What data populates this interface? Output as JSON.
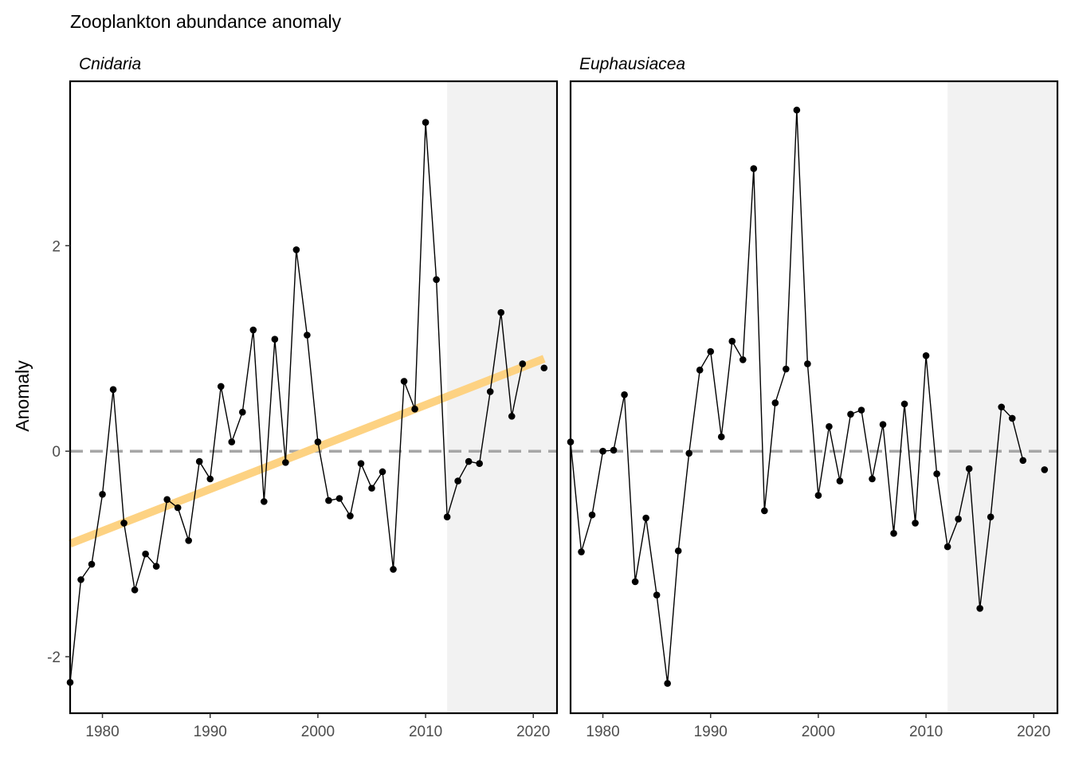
{
  "title": "Zooplankton abundance anomaly",
  "y_axis_label": "Anomaly",
  "colors": {
    "line": "#000000",
    "point": "#000000",
    "trend": "#FDD282",
    "zero_line": "#A6A6A6",
    "recent_shade": "#F2F2F2",
    "panel_border": "#000000"
  },
  "chart_data": [
    {
      "type": "line",
      "panel_title": "Cnidaria",
      "xlim": [
        1977,
        2022.2
      ],
      "ylim": [
        -2.55,
        3.6
      ],
      "x_ticks": [
        1980,
        1990,
        2000,
        2010,
        2020
      ],
      "y_ticks": [
        -2,
        0,
        2
      ],
      "shaded_period": [
        2012,
        2022.2
      ],
      "reference_line_y": 0,
      "trend_line": {
        "x": [
          1977,
          2021
        ],
        "y": [
          -0.9,
          0.9
        ]
      },
      "x": [
        1977,
        1978,
        1979,
        1980,
        1981,
        1982,
        1983,
        1984,
        1985,
        1986,
        1987,
        1988,
        1989,
        1990,
        1991,
        1992,
        1993,
        1994,
        1995,
        1996,
        1997,
        1998,
        1999,
        2000,
        2001,
        2002,
        2003,
        2004,
        2005,
        2006,
        2007,
        2008,
        2009,
        2010,
        2011,
        2012,
        2013,
        2014,
        2015,
        2016,
        2017,
        2018,
        2019,
        2021
      ],
      "y": [
        -2.25,
        -1.25,
        -1.1,
        -0.42,
        0.6,
        -0.7,
        -1.35,
        -1.0,
        -1.12,
        -0.47,
        -0.55,
        -0.87,
        -0.1,
        -0.27,
        0.63,
        0.09,
        0.38,
        1.18,
        -0.49,
        1.09,
        -0.11,
        1.96,
        1.13,
        0.09,
        -0.48,
        -0.46,
        -0.63,
        -0.12,
        -0.36,
        -0.2,
        -1.15,
        0.68,
        0.41,
        3.2,
        1.67,
        -0.64,
        -0.29,
        -0.1,
        -0.12,
        0.58,
        1.35,
        0.34,
        0.85,
        0.81
      ]
    },
    {
      "type": "line",
      "panel_title": "Euphausiacea",
      "xlim": [
        1977,
        2022.2
      ],
      "ylim": [
        -2.55,
        3.6
      ],
      "x_ticks": [
        1980,
        1990,
        2000,
        2010,
        2020
      ],
      "y_ticks": [
        -2,
        0,
        2
      ],
      "shaded_period": [
        2012,
        2022.2
      ],
      "reference_line_y": 0,
      "x": [
        1977,
        1978,
        1979,
        1980,
        1981,
        1982,
        1983,
        1984,
        1985,
        1986,
        1987,
        1988,
        1989,
        1990,
        1991,
        1992,
        1993,
        1994,
        1995,
        1996,
        1997,
        1998,
        1999,
        2000,
        2001,
        2002,
        2003,
        2004,
        2005,
        2006,
        2007,
        2008,
        2009,
        2010,
        2011,
        2012,
        2013,
        2014,
        2015,
        2016,
        2017,
        2018,
        2019,
        2021
      ],
      "y": [
        0.09,
        -0.98,
        -0.62,
        0.0,
        0.01,
        0.55,
        -1.27,
        -0.65,
        -1.4,
        -2.26,
        -0.97,
        -0.02,
        0.79,
        0.97,
        0.14,
        1.07,
        0.89,
        2.75,
        -0.58,
        0.47,
        0.8,
        3.32,
        0.85,
        -0.43,
        0.24,
        -0.29,
        0.36,
        0.4,
        -0.27,
        0.26,
        -0.8,
        0.46,
        -0.7,
        0.93,
        -0.22,
        -0.93,
        -0.66,
        -0.17,
        -1.53,
        -0.64,
        0.43,
        0.32,
        -0.09,
        -0.18
      ]
    }
  ]
}
